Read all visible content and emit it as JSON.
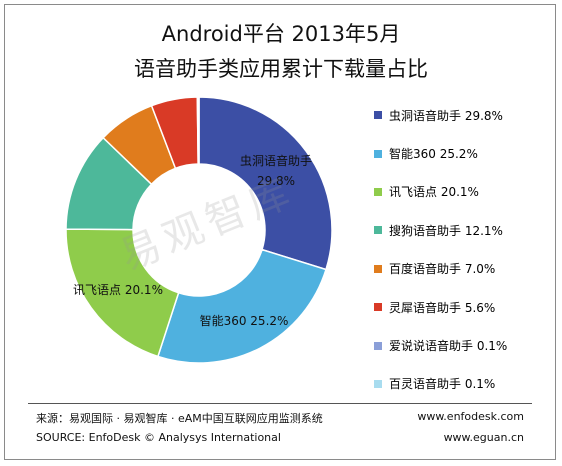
{
  "title_line1": "Android平台 2013年5月",
  "title_line2": "语音助手类应用累计下载量占比",
  "watermark": "易观智库",
  "footer": {
    "source_cn": "来源：易观国际 · 易观智库 · eAM中国互联网应用监测系统",
    "source_en": "SOURCE: EnfoDesk © Analysys International",
    "url1": "www.enfodesk.com",
    "url2": "www.eguan.cn"
  },
  "chart_data": {
    "type": "pie",
    "donut": true,
    "start_angle_deg": 0,
    "direction": "clockwise",
    "legend_placement": "right",
    "slices": [
      {
        "name": "虫洞语音助手",
        "value": 29.8,
        "legend": "虫洞语音助手 29.8%",
        "label_line1": "虫洞语音助手",
        "label_line2": "29.8%",
        "color": "#3c4fa5"
      },
      {
        "name": "智能360",
        "value": 25.2,
        "legend": "智能360 25.2%",
        "label_line1": "智能360 25.2%",
        "label_line2": "",
        "color": "#4fb1df"
      },
      {
        "name": "讯飞语点",
        "value": 20.1,
        "legend": "讯飞语点 20.1%",
        "label_line1": "讯飞语点 20.1%",
        "label_line2": "",
        "color": "#8fcc4b"
      },
      {
        "name": "搜狗语音助手",
        "value": 12.1,
        "legend": "搜狗语音助手 12.1%",
        "label_line1": "",
        "label_line2": "",
        "color": "#4db89a"
      },
      {
        "name": "百度语音助手",
        "value": 7.0,
        "legend": "百度语音助手 7.0%",
        "label_line1": "",
        "label_line2": "",
        "color": "#e07c1d"
      },
      {
        "name": "灵犀语音助手",
        "value": 5.6,
        "legend": "灵犀语音助手 5.6%",
        "label_line1": "",
        "label_line2": "",
        "color": "#d93a26"
      },
      {
        "name": "爱说说语音助手",
        "value": 0.1,
        "legend": "爱说说语音助手 0.1%",
        "label_line1": "",
        "label_line2": "",
        "color": "#8b9fd8"
      },
      {
        "name": "百灵语音助手",
        "value": 0.1,
        "legend": "百灵语音助手 0.1%",
        "label_line1": "",
        "label_line2": "",
        "color": "#a8dcef"
      }
    ]
  }
}
